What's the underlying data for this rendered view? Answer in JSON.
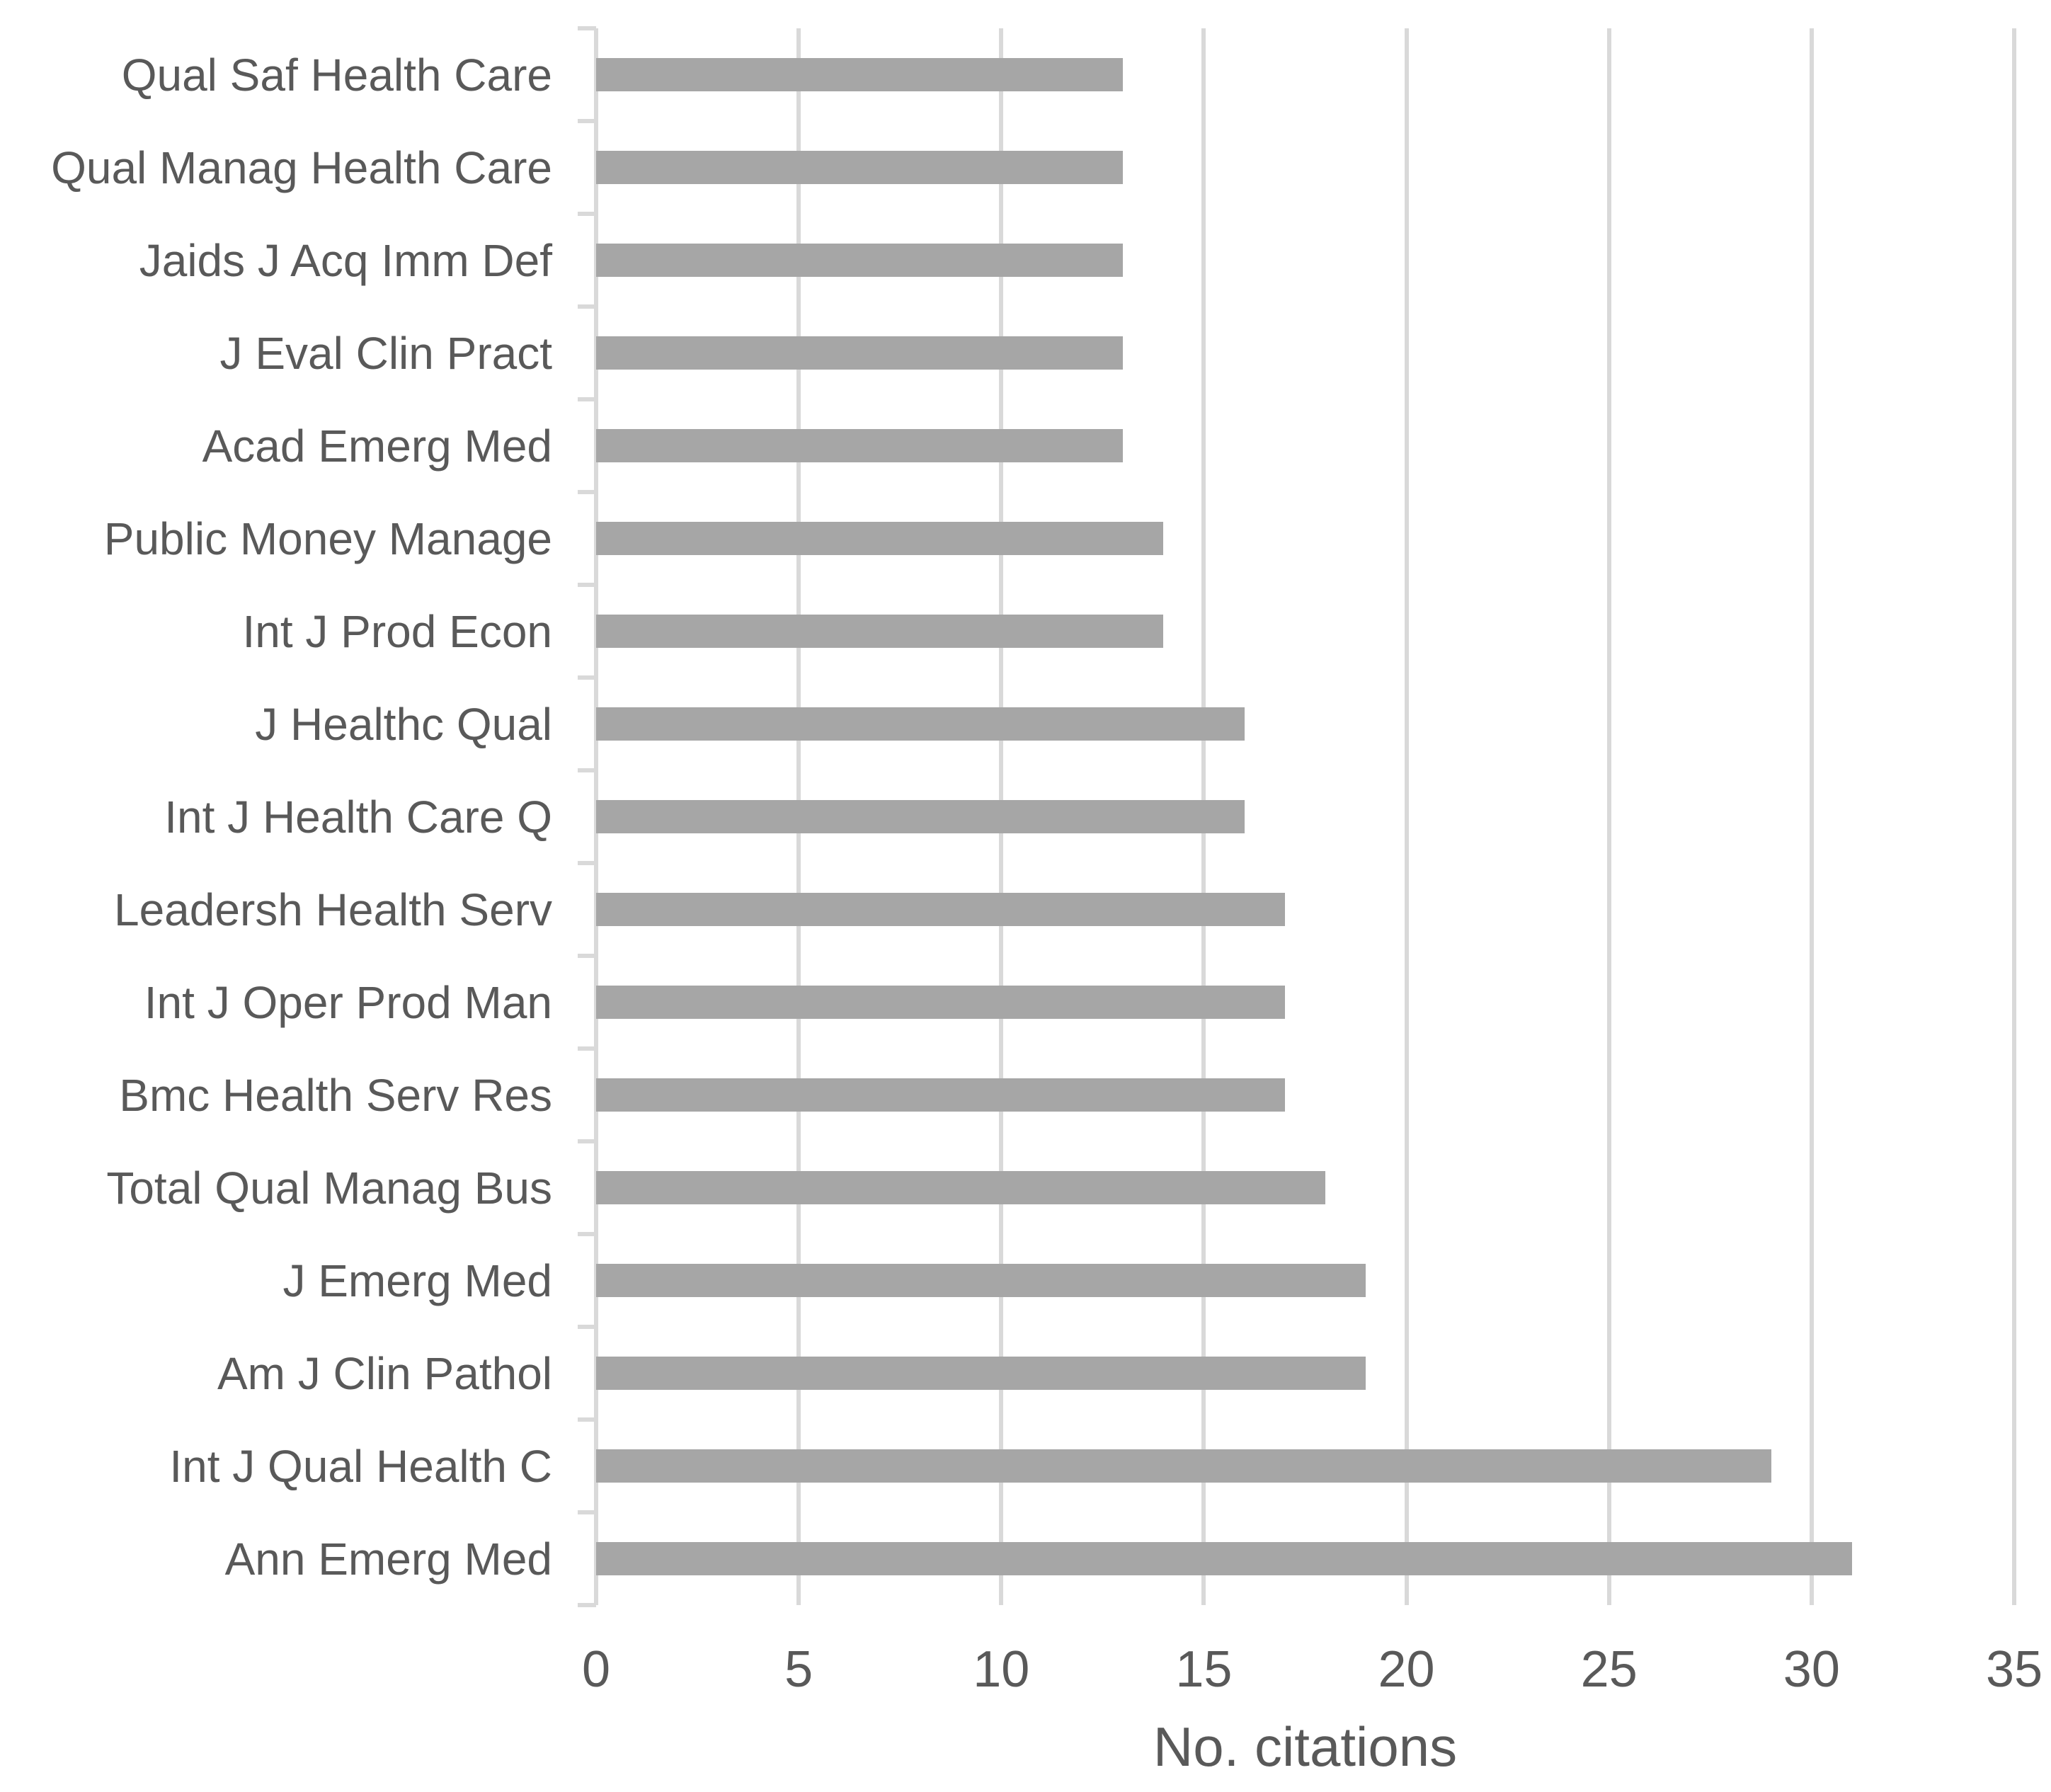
{
  "chart_data": {
    "type": "bar",
    "orientation": "horizontal",
    "title": "",
    "xlabel": "No. citations",
    "ylabel": "",
    "categories": [
      "Qual Saf Health Care",
      "Qual Manag Health Care",
      "Jaids J Acq Imm Def",
      "J Eval Clin Pract",
      "Acad Emerg Med",
      "Public Money Manage",
      "Int J Prod Econ",
      "J Healthc Qual",
      "Int J Health Care Q",
      "Leadersh Health Serv",
      "Int J Oper Prod Man",
      "Bmc Health Serv Res",
      "Total Qual Manag Bus",
      "J Emerg Med",
      "Am J Clin Pathol",
      "Int J Qual Health C",
      "Ann Emerg Med"
    ],
    "categories_order": "top-to-bottom",
    "values": [
      13,
      13,
      13,
      13,
      13,
      14,
      14,
      16,
      16,
      17,
      17,
      17,
      18,
      19,
      19,
      29,
      31
    ],
    "xlim": [
      0,
      35
    ],
    "xticks": [
      0,
      5,
      10,
      15,
      20,
      25,
      30,
      35
    ],
    "grid": "vertical-major-only",
    "legend": "none",
    "colors": {
      "bar": "#a6a6a6",
      "gridline": "#d9d9d9",
      "axis": "#d9d9d9",
      "text": "#595959",
      "background": "#ffffff"
    }
  }
}
